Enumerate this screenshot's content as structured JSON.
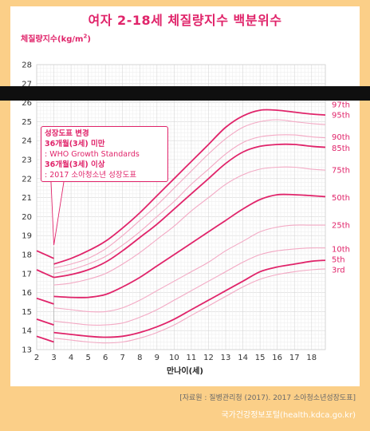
{
  "title": "여자 2-18세 체질량지수 백분위수",
  "source": "[자료원 : 질병관리청 (2017). 2017 소아청소년성장도표]",
  "portal": "국가건강정보포털(health.kdca.go.kr)",
  "colors": {
    "accent": "#e0246a",
    "background": "#fbcf88",
    "grid": "#ececec"
  },
  "note": {
    "line1": "성장도표 변경",
    "line2": "36개월(3세) 미만",
    "line3": ": WHO Growth Standards",
    "line4": "36개월(3세) 이상",
    "line5": ": 2017 소아청소년 성장도표"
  },
  "chart_data": {
    "type": "line",
    "title": "여자 2-18세 체질량지수 백분위수",
    "ylabel": "체질량지수(kg/m",
    "ylabel_sup": "2",
    "ylabel_close": ")",
    "xlabel": "만나이(세)",
    "xlim": [
      2,
      18.8
    ],
    "ylim": [
      13,
      28
    ],
    "x_ticks": [
      2,
      3,
      4,
      5,
      6,
      7,
      8,
      9,
      10,
      11,
      12,
      13,
      14,
      15,
      16,
      17,
      18
    ],
    "y_ticks": [
      13,
      14,
      15,
      16,
      17,
      18,
      19,
      20,
      21,
      22,
      23,
      24,
      25,
      26,
      27,
      28
    ],
    "grid": true,
    "who_segment": [
      {
        "name": "97th",
        "values": [
          [
            2,
            18.2
          ],
          [
            3,
            17.8
          ]
        ]
      },
      {
        "name": "85th",
        "values": [
          [
            2,
            17.2
          ],
          [
            3,
            16.8
          ]
        ]
      },
      {
        "name": "50th",
        "values": [
          [
            2,
            15.7
          ],
          [
            3,
            15.4
          ]
        ]
      },
      {
        "name": "15th",
        "values": [
          [
            2,
            14.6
          ],
          [
            3,
            14.3
          ]
        ]
      },
      {
        "name": "3rd",
        "values": [
          [
            2,
            13.7
          ],
          [
            3,
            13.4
          ]
        ]
      }
    ],
    "series": [
      {
        "name": "97th",
        "bold": true,
        "values": [
          [
            3,
            17.5
          ],
          [
            4,
            17.8
          ],
          [
            5,
            18.2
          ],
          [
            6,
            18.7
          ],
          [
            7,
            19.4
          ],
          [
            8,
            20.2
          ],
          [
            9,
            21.1
          ],
          [
            10,
            22.0
          ],
          [
            11,
            22.9
          ],
          [
            12,
            23.8
          ],
          [
            13,
            24.7
          ],
          [
            14,
            25.3
          ],
          [
            15,
            25.6
          ],
          [
            16,
            25.6
          ],
          [
            17,
            25.5
          ],
          [
            18,
            25.4
          ],
          [
            18.8,
            25.35
          ]
        ]
      },
      {
        "name": "95th",
        "bold": false,
        "values": [
          [
            3,
            17.3
          ],
          [
            4,
            17.5
          ],
          [
            5,
            17.8
          ],
          [
            6,
            18.3
          ],
          [
            7,
            19.0
          ],
          [
            8,
            19.8
          ],
          [
            9,
            20.6
          ],
          [
            10,
            21.5
          ],
          [
            11,
            22.4
          ],
          [
            12,
            23.3
          ],
          [
            13,
            24.1
          ],
          [
            14,
            24.7
          ],
          [
            15,
            25.0
          ],
          [
            16,
            25.1
          ],
          [
            17,
            25.0
          ],
          [
            18,
            24.9
          ],
          [
            18.8,
            24.85
          ]
        ]
      },
      {
        "name": "90th",
        "bold": false,
        "values": [
          [
            3,
            17.0
          ],
          [
            4,
            17.2
          ],
          [
            5,
            17.5
          ],
          [
            6,
            17.9
          ],
          [
            7,
            18.5
          ],
          [
            8,
            19.2
          ],
          [
            9,
            20.0
          ],
          [
            10,
            20.8
          ],
          [
            11,
            21.7
          ],
          [
            12,
            22.5
          ],
          [
            13,
            23.3
          ],
          [
            14,
            23.9
          ],
          [
            15,
            24.2
          ],
          [
            16,
            24.3
          ],
          [
            17,
            24.3
          ],
          [
            18,
            24.2
          ],
          [
            18.8,
            24.15
          ]
        ]
      },
      {
        "name": "85th",
        "bold": true,
        "values": [
          [
            3,
            16.8
          ],
          [
            4,
            16.95
          ],
          [
            5,
            17.2
          ],
          [
            6,
            17.6
          ],
          [
            7,
            18.2
          ],
          [
            8,
            18.9
          ],
          [
            9,
            19.6
          ],
          [
            10,
            20.4
          ],
          [
            11,
            21.2
          ],
          [
            12,
            22.0
          ],
          [
            13,
            22.8
          ],
          [
            14,
            23.4
          ],
          [
            15,
            23.7
          ],
          [
            16,
            23.8
          ],
          [
            17,
            23.8
          ],
          [
            18,
            23.7
          ],
          [
            18.8,
            23.65
          ]
        ]
      },
      {
        "name": "75th",
        "bold": false,
        "values": [
          [
            3,
            16.4
          ],
          [
            4,
            16.5
          ],
          [
            5,
            16.7
          ],
          [
            6,
            17.0
          ],
          [
            7,
            17.5
          ],
          [
            8,
            18.1
          ],
          [
            9,
            18.8
          ],
          [
            10,
            19.5
          ],
          [
            11,
            20.3
          ],
          [
            12,
            21.0
          ],
          [
            13,
            21.7
          ],
          [
            14,
            22.2
          ],
          [
            15,
            22.5
          ],
          [
            16,
            22.6
          ],
          [
            17,
            22.6
          ],
          [
            18,
            22.5
          ],
          [
            18.8,
            22.45
          ]
        ]
      },
      {
        "name": "50th",
        "bold": true,
        "values": [
          [
            3,
            15.8
          ],
          [
            4,
            15.75
          ],
          [
            5,
            15.75
          ],
          [
            6,
            15.9
          ],
          [
            7,
            16.3
          ],
          [
            8,
            16.8
          ],
          [
            9,
            17.4
          ],
          [
            10,
            18.0
          ],
          [
            11,
            18.6
          ],
          [
            12,
            19.2
          ],
          [
            13,
            19.8
          ],
          [
            14,
            20.4
          ],
          [
            15,
            20.9
          ],
          [
            16,
            21.15
          ],
          [
            17,
            21.15
          ],
          [
            18,
            21.1
          ],
          [
            18.8,
            21.05
          ]
        ]
      },
      {
        "name": "25th",
        "bold": false,
        "values": [
          [
            3,
            15.2
          ],
          [
            4,
            15.1
          ],
          [
            5,
            15.0
          ],
          [
            6,
            15.0
          ],
          [
            7,
            15.2
          ],
          [
            8,
            15.6
          ],
          [
            9,
            16.1
          ],
          [
            10,
            16.6
          ],
          [
            11,
            17.1
          ],
          [
            12,
            17.6
          ],
          [
            13,
            18.2
          ],
          [
            14,
            18.7
          ],
          [
            15,
            19.2
          ],
          [
            16,
            19.45
          ],
          [
            17,
            19.55
          ],
          [
            18,
            19.55
          ],
          [
            18.8,
            19.55
          ]
        ]
      },
      {
        "name": "10th",
        "bold": false,
        "values": [
          [
            3,
            14.5
          ],
          [
            4,
            14.4
          ],
          [
            5,
            14.3
          ],
          [
            6,
            14.3
          ],
          [
            7,
            14.4
          ],
          [
            8,
            14.7
          ],
          [
            9,
            15.1
          ],
          [
            10,
            15.6
          ],
          [
            11,
            16.1
          ],
          [
            12,
            16.6
          ],
          [
            13,
            17.1
          ],
          [
            14,
            17.6
          ],
          [
            15,
            18.0
          ],
          [
            16,
            18.2
          ],
          [
            17,
            18.3
          ],
          [
            18,
            18.35
          ],
          [
            18.8,
            18.35
          ]
        ]
      },
      {
        "name": "5th",
        "bold": true,
        "values": [
          [
            3,
            13.9
          ],
          [
            4,
            13.8
          ],
          [
            5,
            13.7
          ],
          [
            6,
            13.65
          ],
          [
            7,
            13.7
          ],
          [
            8,
            13.9
          ],
          [
            9,
            14.2
          ],
          [
            10,
            14.6
          ],
          [
            11,
            15.1
          ],
          [
            12,
            15.6
          ],
          [
            13,
            16.1
          ],
          [
            14,
            16.6
          ],
          [
            15,
            17.1
          ],
          [
            16,
            17.35
          ],
          [
            17,
            17.5
          ],
          [
            18,
            17.65
          ],
          [
            18.8,
            17.7
          ]
        ]
      },
      {
        "name": "3rd",
        "bold": false,
        "values": [
          [
            3,
            13.6
          ],
          [
            4,
            13.5
          ],
          [
            5,
            13.4
          ],
          [
            6,
            13.35
          ],
          [
            7,
            13.4
          ],
          [
            8,
            13.6
          ],
          [
            9,
            13.9
          ],
          [
            10,
            14.3
          ],
          [
            11,
            14.8
          ],
          [
            12,
            15.3
          ],
          [
            13,
            15.8
          ],
          [
            14,
            16.3
          ],
          [
            15,
            16.7
          ],
          [
            16,
            16.95
          ],
          [
            17,
            17.1
          ],
          [
            18,
            17.2
          ],
          [
            18.8,
            17.25
          ]
        ]
      }
    ],
    "percentile_labels": [
      {
        "text": "97th",
        "y": 25.9
      },
      {
        "text": "95th",
        "y": 25.35
      },
      {
        "text": "90th",
        "y": 24.2
      },
      {
        "text": "85th",
        "y": 23.6
      },
      {
        "text": "75th",
        "y": 22.45
      },
      {
        "text": "50th",
        "y": 21.0
      },
      {
        "text": "25th",
        "y": 19.55
      },
      {
        "text": "10th",
        "y": 18.3
      },
      {
        "text": "5th",
        "y": 17.75
      },
      {
        "text": "3rd",
        "y": 17.2
      }
    ]
  }
}
